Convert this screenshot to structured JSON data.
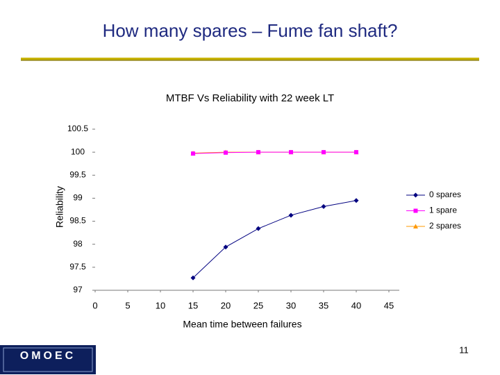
{
  "slide": {
    "title": "How many spares – Fume fan shaft?",
    "page_number": "11",
    "logo": "OMOEC"
  },
  "chart_data": {
    "type": "line",
    "title": "MTBF Vs Reliability with 22 week LT",
    "x_label": "Mean time between failures",
    "y_label": "Reliability",
    "x": [
      15,
      20,
      25,
      30,
      35,
      40
    ],
    "series": [
      {
        "name": "0 spares",
        "color": "#000080",
        "marker": "diamond",
        "values": [
          97.27,
          97.94,
          98.34,
          98.63,
          98.82,
          98.95
        ]
      },
      {
        "name": "1 spare",
        "color": "#ff00ff",
        "marker": "square",
        "values": [
          99.97,
          99.99,
          100,
          100,
          100,
          100
        ]
      },
      {
        "name": "2 spares",
        "color": "#ff9900",
        "marker": "triangle",
        "values": [
          99.98,
          100,
          100,
          100,
          100,
          100
        ]
      }
    ],
    "xlim": [
      0,
      45
    ],
    "xticks": [
      0,
      5,
      10,
      15,
      20,
      25,
      30,
      35,
      40,
      45
    ],
    "ylim": [
      97,
      100.5
    ],
    "yticks": [
      97,
      97.5,
      98,
      98.5,
      99,
      99.5,
      100,
      100.5
    ],
    "grid": false,
    "legend": "right"
  }
}
